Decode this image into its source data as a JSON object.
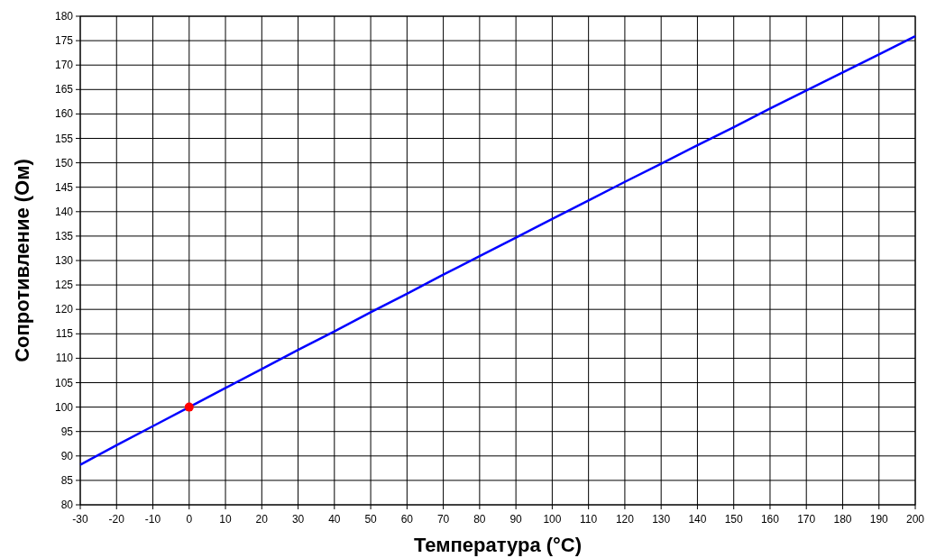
{
  "chart_data": {
    "type": "line",
    "xlabel": "Температура (°C)",
    "ylabel": "Сопротивление (Ом)",
    "xlim": [
      -30,
      200
    ],
    "ylim": [
      80,
      180
    ],
    "xticks": [
      -30,
      -20,
      -10,
      0,
      10,
      20,
      30,
      40,
      50,
      60,
      70,
      80,
      90,
      100,
      110,
      120,
      130,
      140,
      150,
      160,
      170,
      180,
      190,
      200
    ],
    "yticks": [
      80,
      85,
      90,
      95,
      100,
      105,
      110,
      115,
      120,
      125,
      130,
      135,
      140,
      145,
      150,
      155,
      160,
      165,
      170,
      175,
      180
    ],
    "grid": true,
    "series": [
      {
        "color": "#0000ff",
        "marker": "none",
        "x": [
          -30,
          -20,
          -10,
          0,
          10,
          20,
          30,
          40,
          50,
          60,
          70,
          80,
          90,
          100,
          110,
          120,
          130,
          140,
          150,
          160,
          170,
          180,
          190,
          200
        ],
        "values": [
          88.2,
          92.2,
          96.1,
          100,
          103.9,
          107.8,
          111.7,
          115.5,
          119.4,
          123.2,
          127.1,
          130.9,
          134.7,
          138.5,
          142.3,
          146.1,
          149.8,
          153.6,
          157.3,
          161.1,
          164.8,
          168.5,
          172.2,
          175.9
        ]
      },
      {
        "type": "scatter",
        "color": "#ff0000",
        "marker": "circle",
        "x": [
          0
        ],
        "values": [
          100
        ]
      }
    ]
  }
}
